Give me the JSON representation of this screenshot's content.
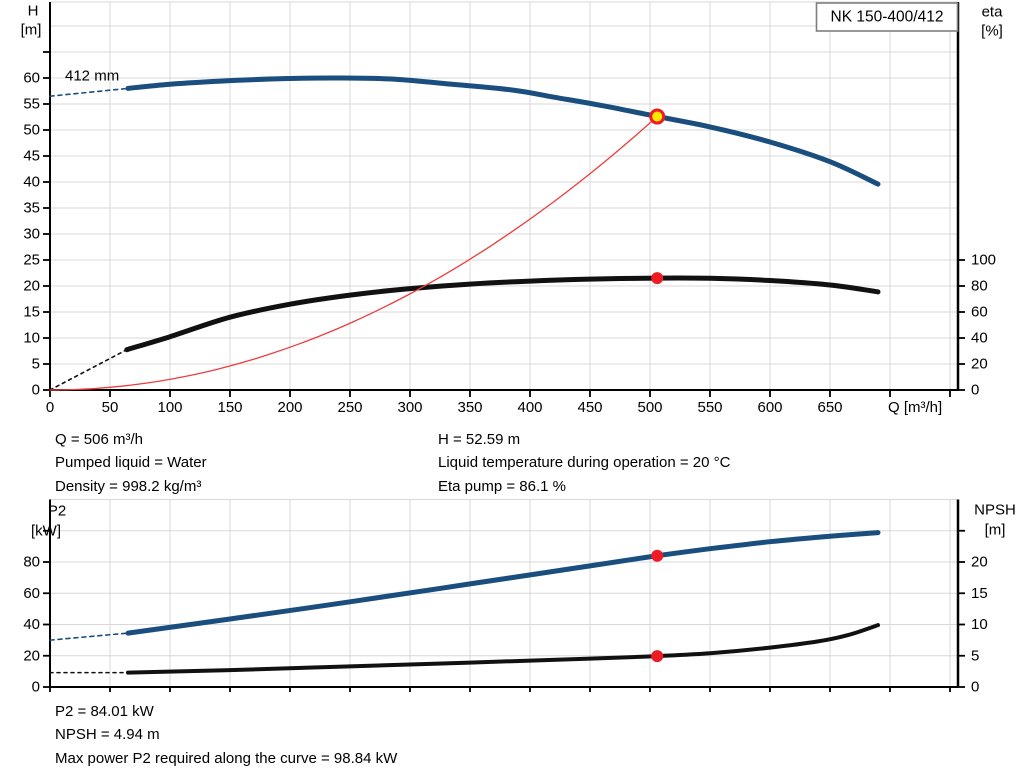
{
  "pump_model": "NK 150-400/412",
  "impeller_diameter_label": "412 mm",
  "top_chart": {
    "y_left": {
      "title1": "H",
      "title2": "[m]",
      "ticks": [
        0,
        5,
        10,
        15,
        20,
        25,
        30,
        35,
        40,
        45,
        50,
        55,
        60
      ]
    },
    "y_right": {
      "title1": "eta",
      "title2": "[%]",
      "ticks": [
        0,
        20,
        40,
        60,
        80,
        100
      ]
    },
    "x_axis": {
      "title": "Q [m³/h]",
      "ticks": [
        0,
        50,
        100,
        150,
        200,
        250,
        300,
        350,
        400,
        450,
        500,
        550,
        600,
        650
      ]
    }
  },
  "bottom_chart": {
    "y_left": {
      "title1": "P2",
      "title2": "[kW]",
      "ticks": [
        0,
        20,
        40,
        60,
        80
      ]
    },
    "y_right": {
      "title1": "NPSH",
      "title2": "[m]",
      "ticks": [
        0,
        5,
        10,
        15,
        20
      ]
    }
  },
  "info_top": {
    "left": [
      "Q = 506 m³/h",
      "Pumped liquid = Water",
      "Density = 998.2 kg/m³"
    ],
    "right": [
      "H = 52.59 m",
      "Liquid temperature during operation = 20 °C",
      "Eta pump = 86.1 %"
    ]
  },
  "info_bottom": [
    "P2 = 84.01 kW",
    "NPSH = 4.94 m",
    "Max power P2 required along the curve = 98.84 kW"
  ],
  "colors": {
    "curve_blue": "#1a4e7e",
    "curve_black": "#111111",
    "system_red": "#ee3d3d",
    "duty_red": "#ed1c24",
    "duty_yellow": "#ffe800",
    "grid": "#d8d8d8"
  },
  "chart_data": [
    {
      "type": "line",
      "title": "NK 150-400/412 head and efficiency vs flow",
      "xlabel": "Q [m³/h]",
      "xlim": [
        0,
        757
      ],
      "ylabel_left": "H [m]",
      "ylim_left": [
        0,
        75
      ],
      "ylabel_right": "eta [%]",
      "ylim_right": [
        0,
        100
      ],
      "grid": true,
      "duty_point": {
        "q": 506,
        "h": 52.59,
        "eta": 86.1
      },
      "series": [
        {
          "name": "head-curve-extrapolated",
          "axis": "H",
          "color": "#1a4e7e",
          "width": 1.6,
          "dash": "4 4",
          "points": [
            [
              0,
              56.5
            ],
            [
              65,
              58.0
            ]
          ]
        },
        {
          "name": "head-curve-412mm",
          "axis": "H",
          "color": "#1a4e7e",
          "width": 5,
          "points": [
            [
              65,
              58.0
            ],
            [
              100,
              58.8
            ],
            [
              150,
              59.5
            ],
            [
              200,
              59.9
            ],
            [
              240,
              60.0
            ],
            [
              285,
              59.8
            ],
            [
              330,
              58.9
            ],
            [
              385,
              57.7
            ],
            [
              420,
              56.3
            ],
            [
              460,
              54.7
            ],
            [
              506,
              52.59
            ],
            [
              550,
              50.6
            ],
            [
              600,
              47.7
            ],
            [
              650,
              43.9
            ],
            [
              690,
              39.6
            ]
          ]
        },
        {
          "name": "eta-curve-extrapolated",
          "axis": "eta",
          "color": "#111111",
          "width": 1.6,
          "dash": "3 4",
          "points": [
            [
              0,
              0
            ],
            [
              64,
              31
            ]
          ]
        },
        {
          "name": "eta-curve",
          "axis": "eta",
          "color": "#111111",
          "width": 5,
          "points": [
            [
              64,
              31
            ],
            [
              100,
              41
            ],
            [
              150,
              56
            ],
            [
              200,
              66
            ],
            [
              250,
              73
            ],
            [
              300,
              78
            ],
            [
              350,
              81.5
            ],
            [
              400,
              83.8
            ],
            [
              450,
              85.3
            ],
            [
              506,
              86.1
            ],
            [
              550,
              85.9
            ],
            [
              600,
              84.2
            ],
            [
              650,
              80.8
            ],
            [
              690,
              75.5
            ]
          ]
        },
        {
          "name": "system-curve",
          "axis": "H",
          "color": "#ee3d3d",
          "width": 1.3,
          "derived": "quadratic_through_duty"
        }
      ]
    },
    {
      "type": "line",
      "title": "Power P2 and NPSH vs flow",
      "xlabel": "Q [m³/h]",
      "xlim": [
        0,
        757
      ],
      "ylabel_left": "P2 [kW]",
      "ylim_left": [
        0,
        121
      ],
      "ylabel_right": "NPSH [m]",
      "ylim_right": [
        0,
        30
      ],
      "grid": true,
      "duty_point": {
        "q": 506,
        "p2": 84.01,
        "npsh": 4.94
      },
      "max_power_along_curve_kw": 98.84,
      "series": [
        {
          "name": "p2-curve-extrapolated",
          "axis": "P2",
          "color": "#1a4e7e",
          "width": 1.6,
          "dash": "4 4",
          "points": [
            [
              0,
              30
            ],
            [
              65,
              34.5
            ]
          ]
        },
        {
          "name": "p2-curve",
          "axis": "P2",
          "color": "#1a4e7e",
          "width": 5,
          "points": [
            [
              65,
              34.5
            ],
            [
              150,
              43.5
            ],
            [
              250,
              54.5
            ],
            [
              350,
              66
            ],
            [
              450,
              77.5
            ],
            [
              506,
              84.01
            ],
            [
              550,
              88.5
            ],
            [
              600,
              93
            ],
            [
              650,
              96.5
            ],
            [
              690,
              98.84
            ]
          ]
        },
        {
          "name": "npsh-curve-extrapolated",
          "axis": "NPSH",
          "color": "#111111",
          "width": 1.6,
          "dash": "3 4",
          "points": [
            [
              0,
              2.3
            ],
            [
              65,
              2.3
            ]
          ]
        },
        {
          "name": "npsh-curve",
          "axis": "NPSH",
          "color": "#111111",
          "width": 4,
          "points": [
            [
              65,
              2.3
            ],
            [
              150,
              2.7
            ],
            [
              250,
              3.3
            ],
            [
              350,
              3.9
            ],
            [
              450,
              4.55
            ],
            [
              506,
              4.94
            ],
            [
              550,
              5.4
            ],
            [
              600,
              6.3
            ],
            [
              640,
              7.3
            ],
            [
              665,
              8.3
            ],
            [
              690,
              9.9
            ]
          ]
        }
      ]
    }
  ]
}
